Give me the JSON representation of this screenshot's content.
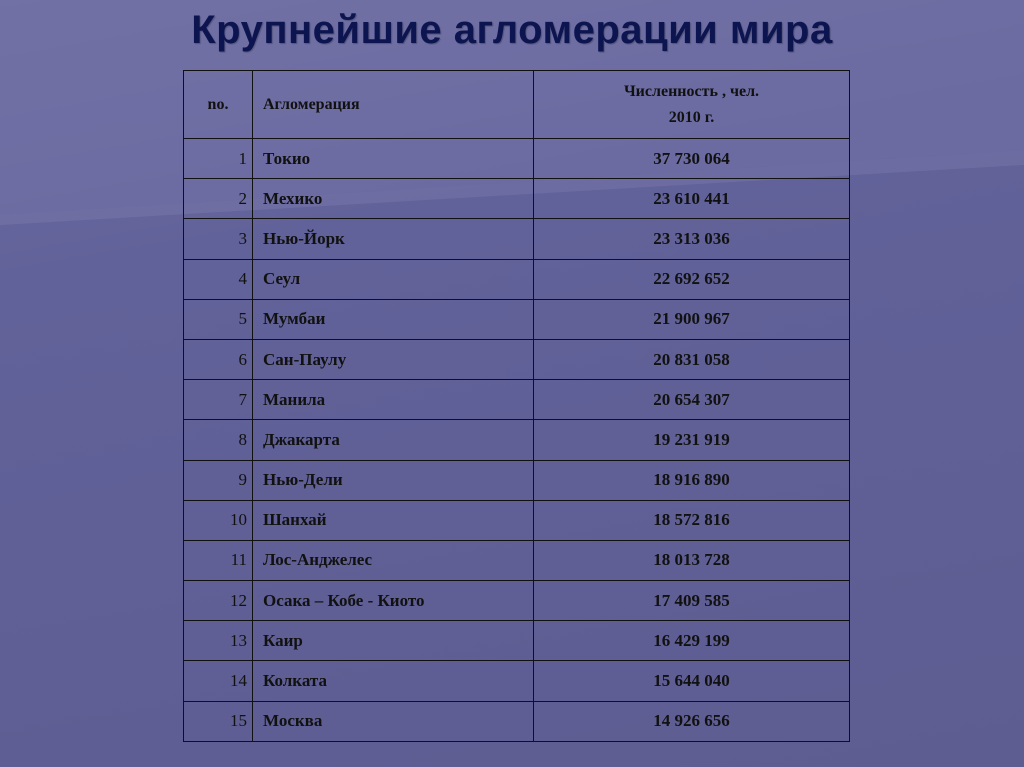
{
  "title": "Крупнейшие агломерации мира",
  "table": {
    "header": {
      "no": "no.",
      "name": "Агломерация",
      "population": "Численность , чел.",
      "year": "2010 г."
    },
    "rows": [
      [
        1,
        "Токио",
        "37 730 064"
      ],
      [
        2,
        "Мехико",
        "23 610 441"
      ],
      [
        3,
        "Нью-Йорк",
        "23 313 036"
      ],
      [
        4,
        "Сеул",
        "22 692 652"
      ],
      [
        5,
        "Мумбаи",
        "21 900 967"
      ],
      [
        6,
        "Сан-Паулу",
        "20 831 058"
      ],
      [
        7,
        "Манила",
        "20 654 307"
      ],
      [
        8,
        "Джакарта",
        "19 231 919"
      ],
      [
        9,
        "Нью-Дели",
        "18 916 890"
      ],
      [
        10,
        "Шанхай",
        "18 572 816"
      ],
      [
        11,
        "Лос-Анджелес",
        "18 013 728"
      ],
      [
        12,
        "Осака – Кобе - Киото",
        "17 409 585"
      ],
      [
        13,
        "Каир",
        "16 429 199"
      ],
      [
        14,
        "Колката",
        "15 644 040"
      ],
      [
        15,
        "Москва",
        "14 926 656"
      ]
    ]
  }
}
